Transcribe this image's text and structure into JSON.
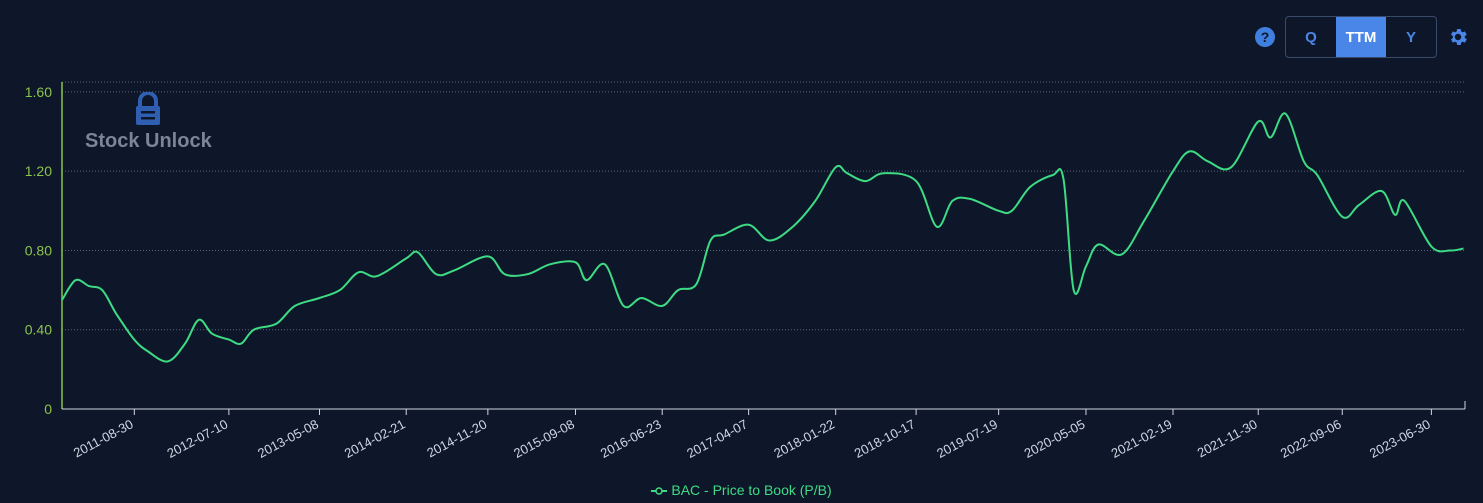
{
  "toolbar": {
    "help_glyph": "?",
    "periods": [
      "Q",
      "TTM",
      "Y"
    ],
    "active_period": "TTM",
    "icons": [
      "help-icon",
      "gear-icon"
    ]
  },
  "logo": {
    "text": "Stock Unlock",
    "icon": "lock-logo-icon"
  },
  "colors": {
    "background": "#0e1729",
    "line": "#3ddc84",
    "axis": "#8bc34a",
    "accent": "#4a86e8"
  },
  "chart_data": {
    "type": "line",
    "title": "",
    "xlabel": "",
    "ylabel": "",
    "ylim": [
      0,
      1.65
    ],
    "y_ticks": [
      "0",
      "0.40",
      "0.80",
      "1.20",
      "1.60"
    ],
    "x_ticks": [
      "2011-08-30",
      "2012-07-10",
      "2013-05-08",
      "2014-02-21",
      "2014-11-20",
      "2015-09-08",
      "2016-06-23",
      "2017-04-07",
      "2018-01-22",
      "2018-10-17",
      "2019-07-19",
      "2020-05-05",
      "2021-02-19",
      "2021-11-30",
      "2022-09-06",
      "2023-06-30"
    ],
    "grid": "horizontal",
    "legend_position": "bottom",
    "series": [
      {
        "name": "BAC - Price to Book (P/B)",
        "x": [
          "2011-01-01",
          "2011-02-15",
          "2011-04-01",
          "2011-05-15",
          "2011-07-01",
          "2011-08-30",
          "2011-10-15",
          "2011-12-20",
          "2012-02-15",
          "2012-04-01",
          "2012-05-15",
          "2012-07-10",
          "2012-08-20",
          "2012-10-01",
          "2012-12-15",
          "2013-02-15",
          "2013-05-08",
          "2013-07-15",
          "2013-09-15",
          "2013-11-15",
          "2014-02-21",
          "2014-04-01",
          "2014-06-01",
          "2014-08-01",
          "2014-11-20",
          "2015-01-15",
          "2015-04-01",
          "2015-06-15",
          "2015-09-08",
          "2015-10-15",
          "2015-12-15",
          "2016-02-15",
          "2016-04-15",
          "2016-06-23",
          "2016-08-15",
          "2016-10-15",
          "2016-12-01",
          "2017-01-15",
          "2017-04-07",
          "2017-06-15",
          "2017-09-01",
          "2017-11-15",
          "2018-01-22",
          "2018-03-01",
          "2018-05-01",
          "2018-07-01",
          "2018-10-17",
          "2018-12-25",
          "2019-02-15",
          "2019-04-15",
          "2019-07-19",
          "2019-09-01",
          "2019-11-01",
          "2020-01-15",
          "2020-02-20",
          "2020-03-25",
          "2020-05-05",
          "2020-06-15",
          "2020-09-01",
          "2020-11-15",
          "2021-02-19",
          "2021-04-15",
          "2021-06-15",
          "2021-09-01",
          "2021-11-30",
          "2022-01-10",
          "2022-03-01",
          "2022-05-01",
          "2022-06-15",
          "2022-09-06",
          "2022-11-01",
          "2023-01-15",
          "2023-03-01",
          "2023-04-01",
          "2023-06-30",
          "2023-09-01",
          "2023-10-15"
        ],
        "values": [
          0.55,
          0.65,
          0.62,
          0.6,
          0.48,
          0.35,
          0.29,
          0.24,
          0.33,
          0.45,
          0.38,
          0.35,
          0.33,
          0.4,
          0.43,
          0.52,
          0.56,
          0.6,
          0.69,
          0.67,
          0.76,
          0.79,
          0.68,
          0.7,
          0.77,
          0.68,
          0.68,
          0.73,
          0.74,
          0.65,
          0.73,
          0.52,
          0.56,
          0.52,
          0.6,
          0.63,
          0.85,
          0.88,
          0.93,
          0.85,
          0.92,
          1.05,
          1.22,
          1.19,
          1.15,
          1.19,
          1.15,
          0.92,
          1.05,
          1.06,
          1.0,
          1.0,
          1.12,
          1.18,
          1.16,
          0.6,
          0.72,
          0.83,
          0.78,
          0.95,
          1.2,
          1.3,
          1.25,
          1.22,
          1.45,
          1.37,
          1.49,
          1.25,
          1.18,
          0.97,
          1.03,
          1.1,
          0.98,
          1.05,
          0.82,
          0.8,
          0.81
        ]
      }
    ]
  }
}
